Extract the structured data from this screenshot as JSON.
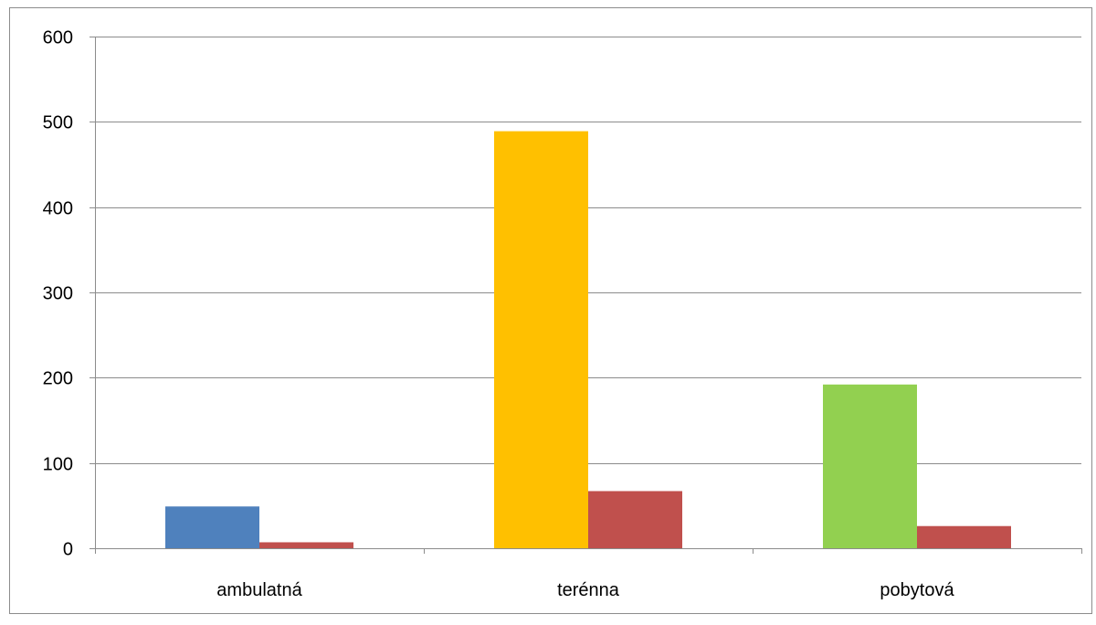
{
  "chart_data": {
    "type": "bar",
    "categories": [
      "ambulatná",
      "terénna",
      "pobytová"
    ],
    "series": [
      {
        "values": [
          49,
          489,
          192
        ],
        "colors": [
          "#4f81bd",
          "#ffc000",
          "#92d050"
        ]
      },
      {
        "values": [
          7,
          67,
          26
        ],
        "colors": [
          "#c0504d",
          "#c0504d",
          "#c0504d"
        ]
      }
    ],
    "y_ticks": [
      "0",
      "100",
      "200",
      "300",
      "400",
      "500",
      "600"
    ],
    "ylim": [
      0,
      600
    ],
    "grid": true,
    "legend": "none",
    "title": "",
    "xlabel": "",
    "ylabel": ""
  }
}
